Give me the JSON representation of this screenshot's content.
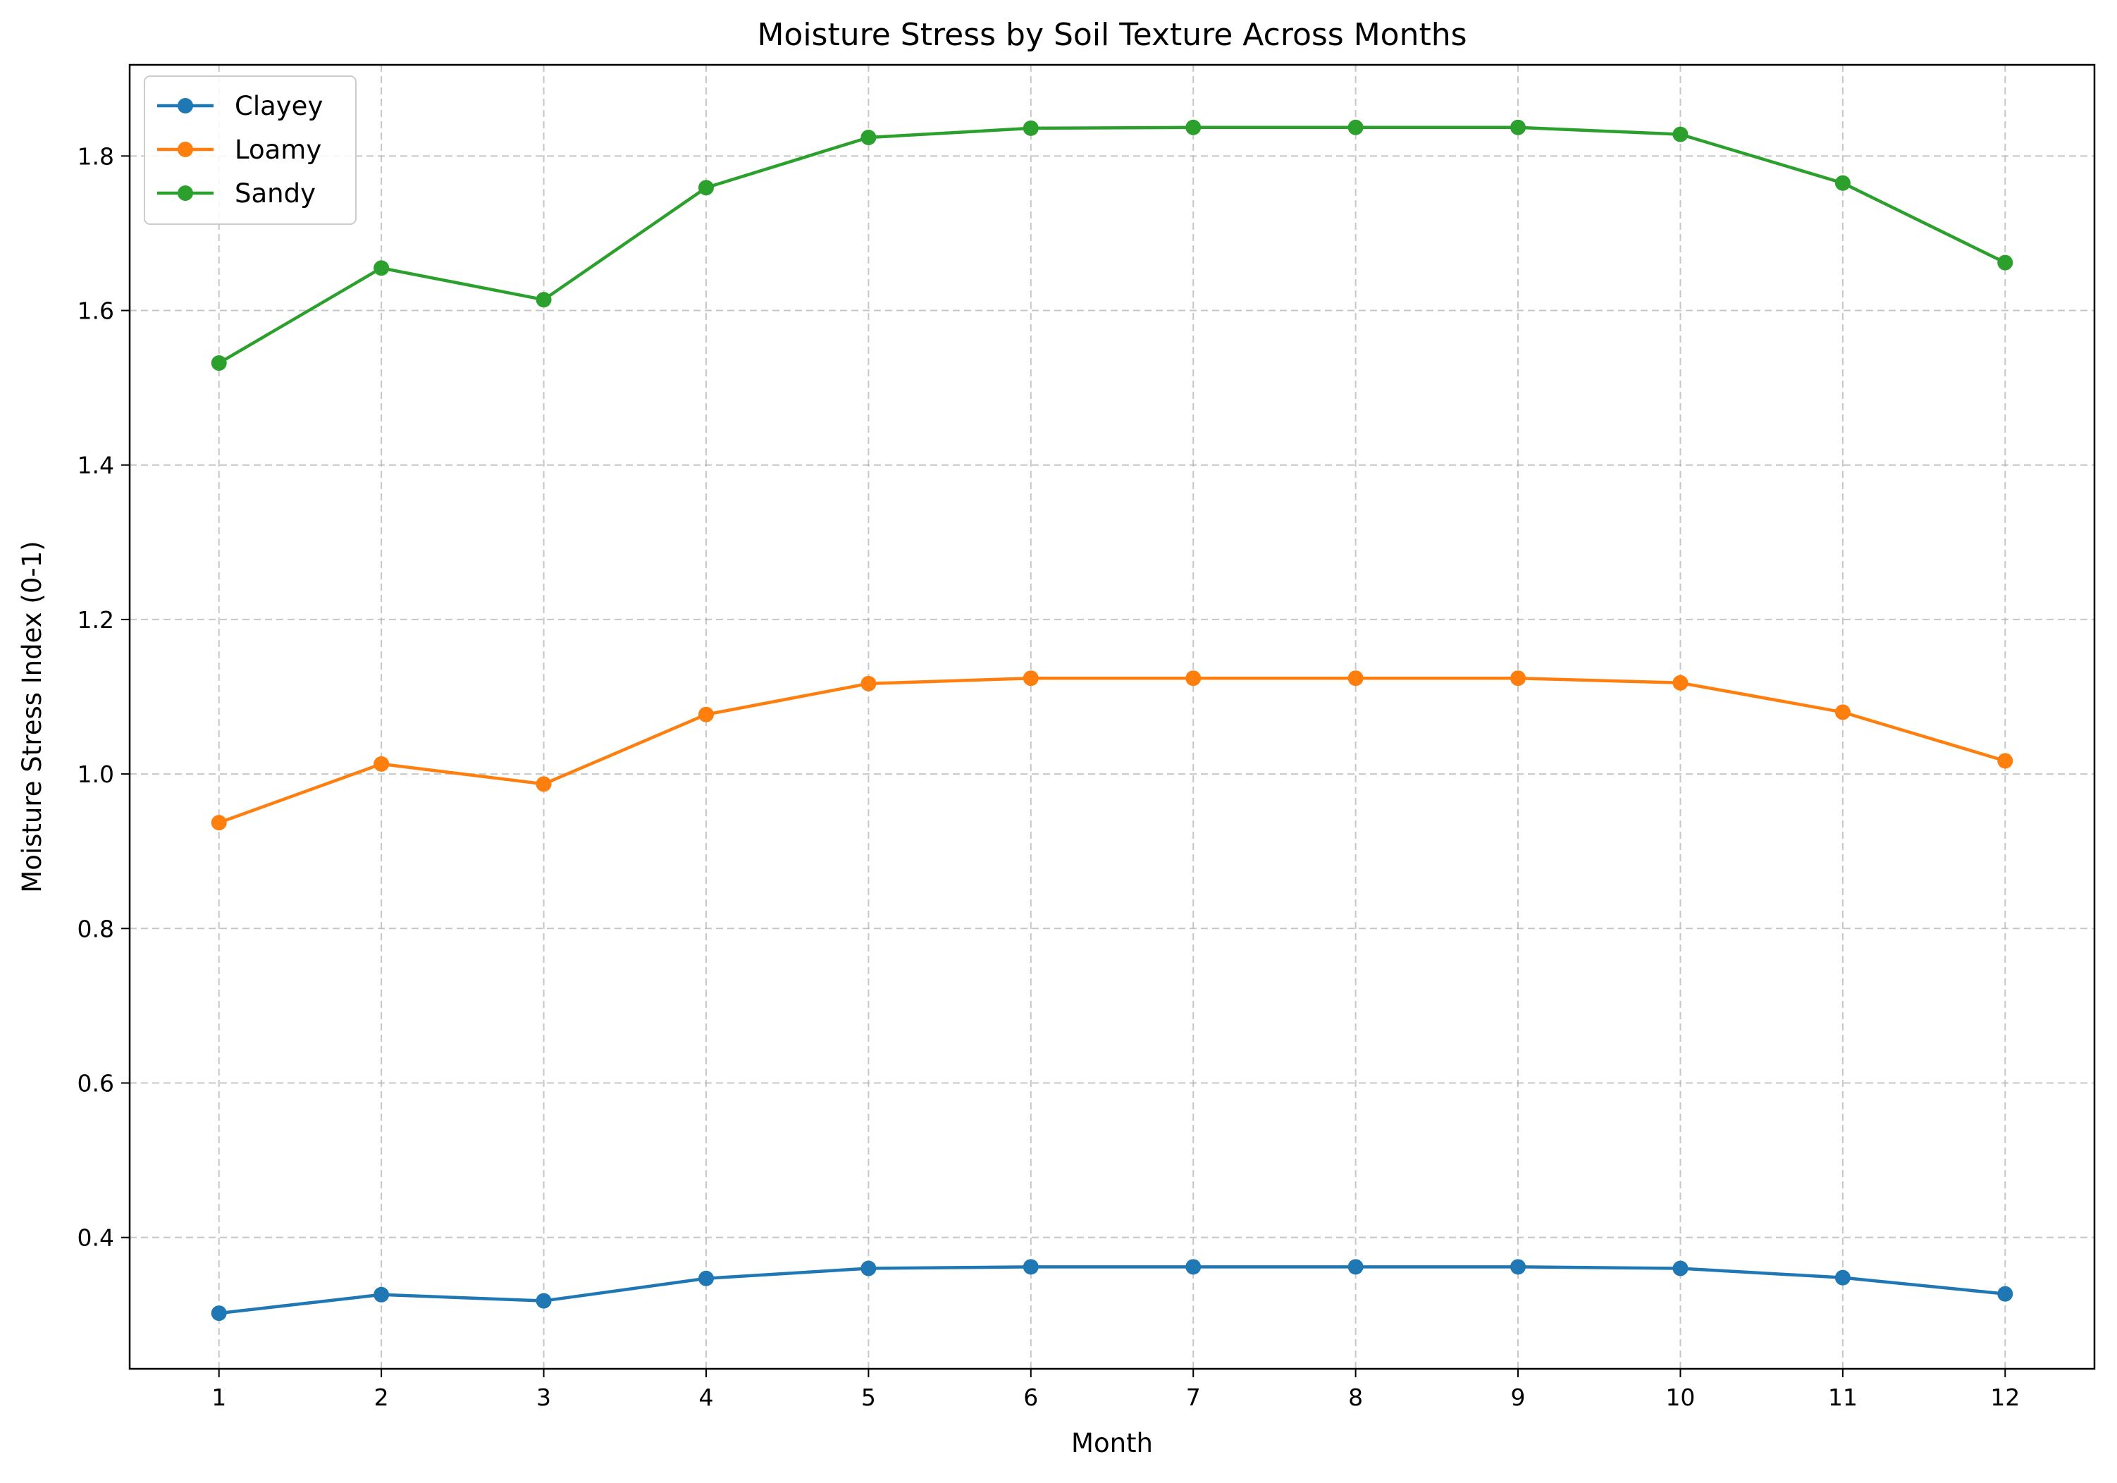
{
  "chart_data": {
    "type": "line",
    "title": "Moisture Stress by Soil Texture Across Months",
    "xlabel": "Month",
    "ylabel": "Moisture Stress Index (0-1)",
    "x": [
      1,
      2,
      3,
      4,
      5,
      6,
      7,
      8,
      9,
      10,
      11,
      12
    ],
    "xticks": [
      "1",
      "2",
      "3",
      "4",
      "5",
      "6",
      "7",
      "8",
      "9",
      "10",
      "11",
      "12"
    ],
    "xlim": [
      0.45,
      12.55
    ],
    "ylim": [
      0.23,
      1.918
    ],
    "yticks": [
      0.4,
      0.6,
      0.8,
      1.0,
      1.2,
      1.4,
      1.6,
      1.8
    ],
    "ytick_labels": [
      "0.4",
      "0.6",
      "0.8",
      "1.0",
      "1.2",
      "1.4",
      "1.6",
      "1.8"
    ],
    "grid": true,
    "legend_position": "top-left",
    "marker": "circle",
    "series": [
      {
        "name": "Clayey",
        "color": "#1f77b4",
        "values": [
          0.302,
          0.326,
          0.318,
          0.347,
          0.36,
          0.362,
          0.362,
          0.362,
          0.362,
          0.36,
          0.348,
          0.327
        ]
      },
      {
        "name": "Loamy",
        "color": "#ff7f0e",
        "values": [
          0.937,
          1.013,
          0.987,
          1.077,
          1.117,
          1.124,
          1.124,
          1.124,
          1.124,
          1.118,
          1.08,
          1.017
        ]
      },
      {
        "name": "Sandy",
        "color": "#2ca02c",
        "values": [
          1.532,
          1.655,
          1.614,
          1.759,
          1.824,
          1.836,
          1.837,
          1.837,
          1.837,
          1.828,
          1.765,
          1.662
        ]
      }
    ]
  }
}
